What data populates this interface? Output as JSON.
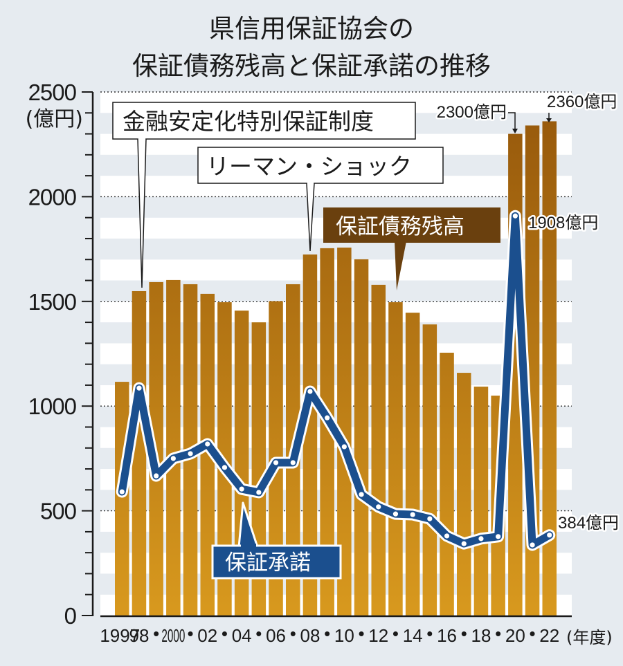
{
  "chart_data": {
    "type": "bar+line",
    "title": [
      "県信用保証協会の",
      "保証債務残高と保証承諾の推移"
    ],
    "ylabel": "(億円)",
    "xlabel": "(年度)",
    "ylim": [
      0,
      2500
    ],
    "yticks": [
      "0",
      "500",
      "1000",
      "1500",
      "2000",
      "2500"
    ],
    "ytick_values": [
      0,
      500,
      1000,
      1500,
      2000,
      2500
    ],
    "minor_tick_step": 100,
    "grid": "dotted at major ticks, alternating bands every 100",
    "x": [
      "1997",
      "1998",
      "1999",
      "2000",
      "2001",
      "2002",
      "2003",
      "2004",
      "2005",
      "2006",
      "2007",
      "2008",
      "2009",
      "2010",
      "2011",
      "2012",
      "2013",
      "2014",
      "2015",
      "2016",
      "2017",
      "2018",
      "2019",
      "2020",
      "2021",
      "2022"
    ],
    "xtick_labels": [
      {
        "index": 0,
        "text": "1997"
      },
      {
        "index": 1,
        "text": "98"
      },
      {
        "index": 2,
        "text": "•"
      },
      {
        "index": 3,
        "text": "2000"
      },
      {
        "index": 4,
        "text": "•"
      },
      {
        "index": 5,
        "text": "02"
      },
      {
        "index": 6,
        "text": "•"
      },
      {
        "index": 7,
        "text": "04"
      },
      {
        "index": 8,
        "text": "•"
      },
      {
        "index": 9,
        "text": "06"
      },
      {
        "index": 10,
        "text": "•"
      },
      {
        "index": 11,
        "text": "08"
      },
      {
        "index": 12,
        "text": "•"
      },
      {
        "index": 13,
        "text": "10"
      },
      {
        "index": 14,
        "text": "•"
      },
      {
        "index": 15,
        "text": "12"
      },
      {
        "index": 16,
        "text": "•"
      },
      {
        "index": 17,
        "text": "14"
      },
      {
        "index": 18,
        "text": "•"
      },
      {
        "index": 19,
        "text": "16"
      },
      {
        "index": 20,
        "text": "•"
      },
      {
        "index": 21,
        "text": "18"
      },
      {
        "index": 22,
        "text": "•"
      },
      {
        "index": 23,
        "text": "20"
      },
      {
        "index": 24,
        "text": "•"
      },
      {
        "index": 25,
        "text": "22"
      }
    ],
    "series": [
      {
        "name": "保証債務残高",
        "type": "bar",
        "values": [
          1116,
          1549,
          1592,
          1602,
          1582,
          1536,
          1496,
          1456,
          1400,
          1501,
          1582,
          1724,
          1754,
          1757,
          1701,
          1579,
          1496,
          1446,
          1390,
          1255,
          1159,
          1093,
          1050,
          2300,
          2340,
          2360
        ]
      },
      {
        "name": "保証承諾",
        "type": "line",
        "values": [
          591,
          1086,
          667,
          750,
          773,
          819,
          707,
          604,
          588,
          730,
          730,
          1070,
          944,
          806,
          578,
          519,
          485,
          482,
          462,
          380,
          343,
          367,
          377,
          1908,
          337,
          384
        ]
      }
    ],
    "annotations": [
      {
        "text": "金融安定化特別保証制度",
        "points_to": "1998"
      },
      {
        "text": "リーマン・ショック",
        "points_to": "2008"
      },
      {
        "text": "2300億円",
        "points_to": "2020"
      },
      {
        "text": "2360億円",
        "points_to": "2022"
      },
      {
        "text": "1908億円",
        "points_to": "2020"
      },
      {
        "text": "384億円",
        "points_to": "2022"
      }
    ],
    "legend": [
      {
        "text": "保証債務残高",
        "series": 0,
        "placement": "center-top"
      },
      {
        "text": "保証承諾",
        "series": 1,
        "placement": "bottom-center"
      }
    ]
  },
  "colors": {
    "background": "#e6ebf0",
    "band_light": "#ffffff",
    "bar_top": "#985a0c",
    "bar_bottom": "#d8991e",
    "line": "#1b4f8e",
    "bar_legend_bg": "#6a400e",
    "line_legend_bg": "#1b4f8e",
    "text": "#1a1a1a"
  }
}
